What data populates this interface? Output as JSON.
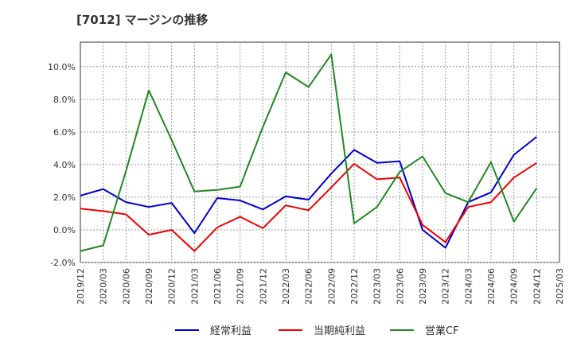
{
  "chart_data": {
    "type": "line",
    "title": "[7012]  マージンの推移",
    "xlabel": "",
    "ylabel": "",
    "ylim": [
      -2.0,
      11.5
    ],
    "yticks": [
      -2.0,
      0.0,
      2.0,
      4.0,
      6.0,
      8.0,
      10.0
    ],
    "ytick_labels": [
      "-2.0%",
      "0.0%",
      "2.0%",
      "4.0%",
      "6.0%",
      "8.0%",
      "10.0%"
    ],
    "grid": true,
    "legend_position": "bottom",
    "categories": [
      "2019/12",
      "2020/03",
      "2020/06",
      "2020/09",
      "2020/12",
      "2021/03",
      "2021/06",
      "2021/09",
      "2021/12",
      "2022/03",
      "2022/06",
      "2022/09",
      "2022/12",
      "2023/03",
      "2023/06",
      "2023/09",
      "2023/12",
      "2024/03",
      "2024/06",
      "2024/09",
      "2024/12",
      "2025/03"
    ],
    "series": [
      {
        "name": "経常利益",
        "color": "#0000cc",
        "values": [
          2.1,
          2.5,
          1.7,
          1.4,
          1.65,
          -0.2,
          1.95,
          1.8,
          1.25,
          2.05,
          1.85,
          3.45,
          4.9,
          4.1,
          4.2,
          0.0,
          -1.1,
          1.7,
          2.3,
          4.6,
          5.7,
          null
        ]
      },
      {
        "name": "当期純利益",
        "color": "#ee0000",
        "values": [
          1.3,
          1.15,
          0.95,
          -0.3,
          0.0,
          -1.3,
          0.15,
          0.8,
          0.1,
          1.5,
          1.2,
          2.6,
          4.05,
          3.1,
          3.2,
          0.3,
          -0.75,
          1.4,
          1.7,
          3.2,
          4.1,
          null
        ]
      },
      {
        "name": "営業CF",
        "color": "#228822",
        "values": [
          -1.3,
          -0.95,
          3.6,
          8.55,
          5.5,
          2.35,
          2.45,
          2.65,
          6.3,
          9.65,
          8.75,
          10.75,
          0.4,
          1.4,
          3.55,
          4.5,
          2.25,
          1.7,
          4.15,
          0.5,
          2.55,
          null
        ]
      }
    ]
  }
}
